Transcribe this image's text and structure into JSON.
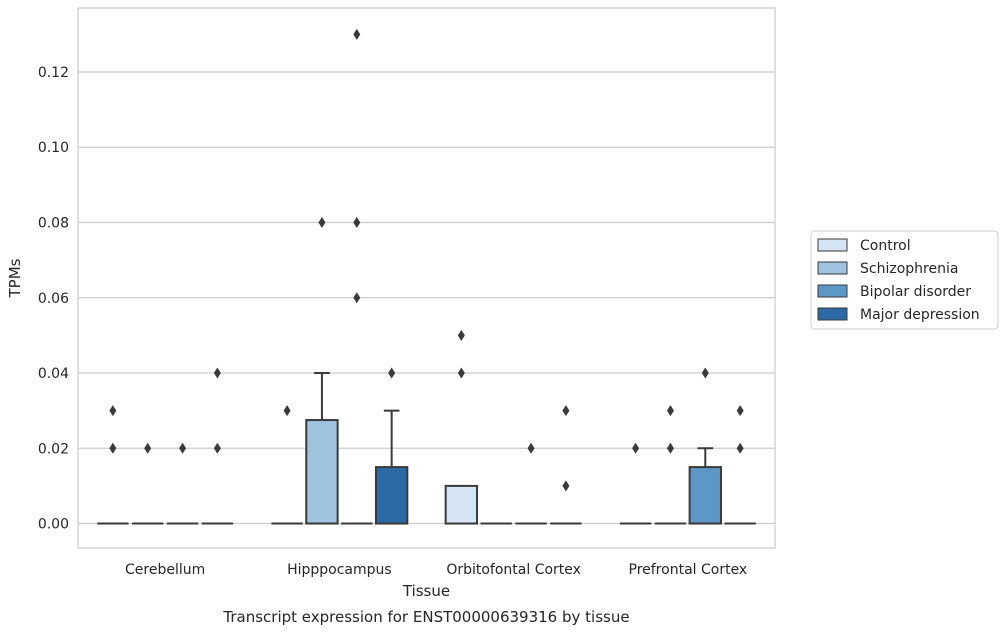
{
  "chart_data": {
    "type": "box",
    "title": "Transcript expression for ENST00000639316 by tissue",
    "xlabel": "Tissue",
    "ylabel": "TPMs",
    "ylim": [
      -0.0065,
      0.137
    ],
    "yticks": [
      "0.00",
      "0.02",
      "0.04",
      "0.06",
      "0.08",
      "0.10",
      "0.12"
    ],
    "categories": [
      "Cerebellum",
      "Hipppocampus",
      "Orbitofontal Cortex",
      "Prefrontal Cortex"
    ],
    "grid": "horizontal",
    "legend_position": "right",
    "series": [
      {
        "name": "Control",
        "color": "#d5e5f3",
        "boxes": [
          {
            "q1": 0,
            "median": 0,
            "q3": 0,
            "whislo": 0,
            "whishi": 0,
            "fliers": [
              0.02,
              0.03
            ]
          },
          {
            "q1": 0,
            "median": 0,
            "q3": 0,
            "whislo": 0,
            "whishi": 0,
            "fliers": [
              0.03
            ]
          },
          {
            "q1": 0,
            "median": 0,
            "q3": 0.01,
            "whislo": 0,
            "whishi": 0.01,
            "fliers": [
              0.04,
              0.05
            ]
          },
          {
            "q1": 0,
            "median": 0,
            "q3": 0,
            "whislo": 0,
            "whishi": 0,
            "fliers": [
              0.02
            ]
          }
        ]
      },
      {
        "name": "Schizophrenia",
        "color": "#9dc3df",
        "boxes": [
          {
            "q1": 0,
            "median": 0,
            "q3": 0,
            "whislo": 0,
            "whishi": 0,
            "fliers": [
              0.02
            ]
          },
          {
            "q1": 0,
            "median": 0,
            "q3": 0.0275,
            "whislo": 0,
            "whishi": 0.04,
            "fliers": [
              0.08
            ]
          },
          {
            "q1": 0,
            "median": 0,
            "q3": 0,
            "whislo": 0,
            "whishi": 0,
            "fliers": []
          },
          {
            "q1": 0,
            "median": 0,
            "q3": 0,
            "whislo": 0,
            "whishi": 0,
            "fliers": [
              0.02,
              0.03
            ]
          }
        ]
      },
      {
        "name": "Bipolar disorder",
        "color": "#5b98c6",
        "boxes": [
          {
            "q1": 0,
            "median": 0,
            "q3": 0,
            "whislo": 0,
            "whishi": 0,
            "fliers": [
              0.02
            ]
          },
          {
            "q1": 0,
            "median": 0,
            "q3": 0,
            "whislo": 0,
            "whishi": 0,
            "fliers": [
              0.06,
              0.08,
              0.13
            ]
          },
          {
            "q1": 0,
            "median": 0,
            "q3": 0,
            "whislo": 0,
            "whishi": 0,
            "fliers": [
              0.02
            ]
          },
          {
            "q1": 0,
            "median": 0,
            "q3": 0.015,
            "whislo": 0,
            "whishi": 0.02,
            "fliers": [
              0.04
            ]
          }
        ]
      },
      {
        "name": "Major depression",
        "color": "#2c6aa6",
        "boxes": [
          {
            "q1": 0,
            "median": 0,
            "q3": 0,
            "whislo": 0,
            "whishi": 0,
            "fliers": [
              0.02,
              0.04
            ]
          },
          {
            "q1": 0,
            "median": 0,
            "q3": 0.015,
            "whislo": 0,
            "whishi": 0.03,
            "fliers": [
              0.04
            ]
          },
          {
            "q1": 0,
            "median": 0,
            "q3": 0,
            "whislo": 0,
            "whishi": 0,
            "fliers": [
              0.01,
              0.03
            ]
          },
          {
            "q1": 0,
            "median": 0,
            "q3": 0,
            "whislo": 0,
            "whishi": 0,
            "fliers": [
              0.02,
              0.03
            ]
          }
        ]
      }
    ]
  }
}
